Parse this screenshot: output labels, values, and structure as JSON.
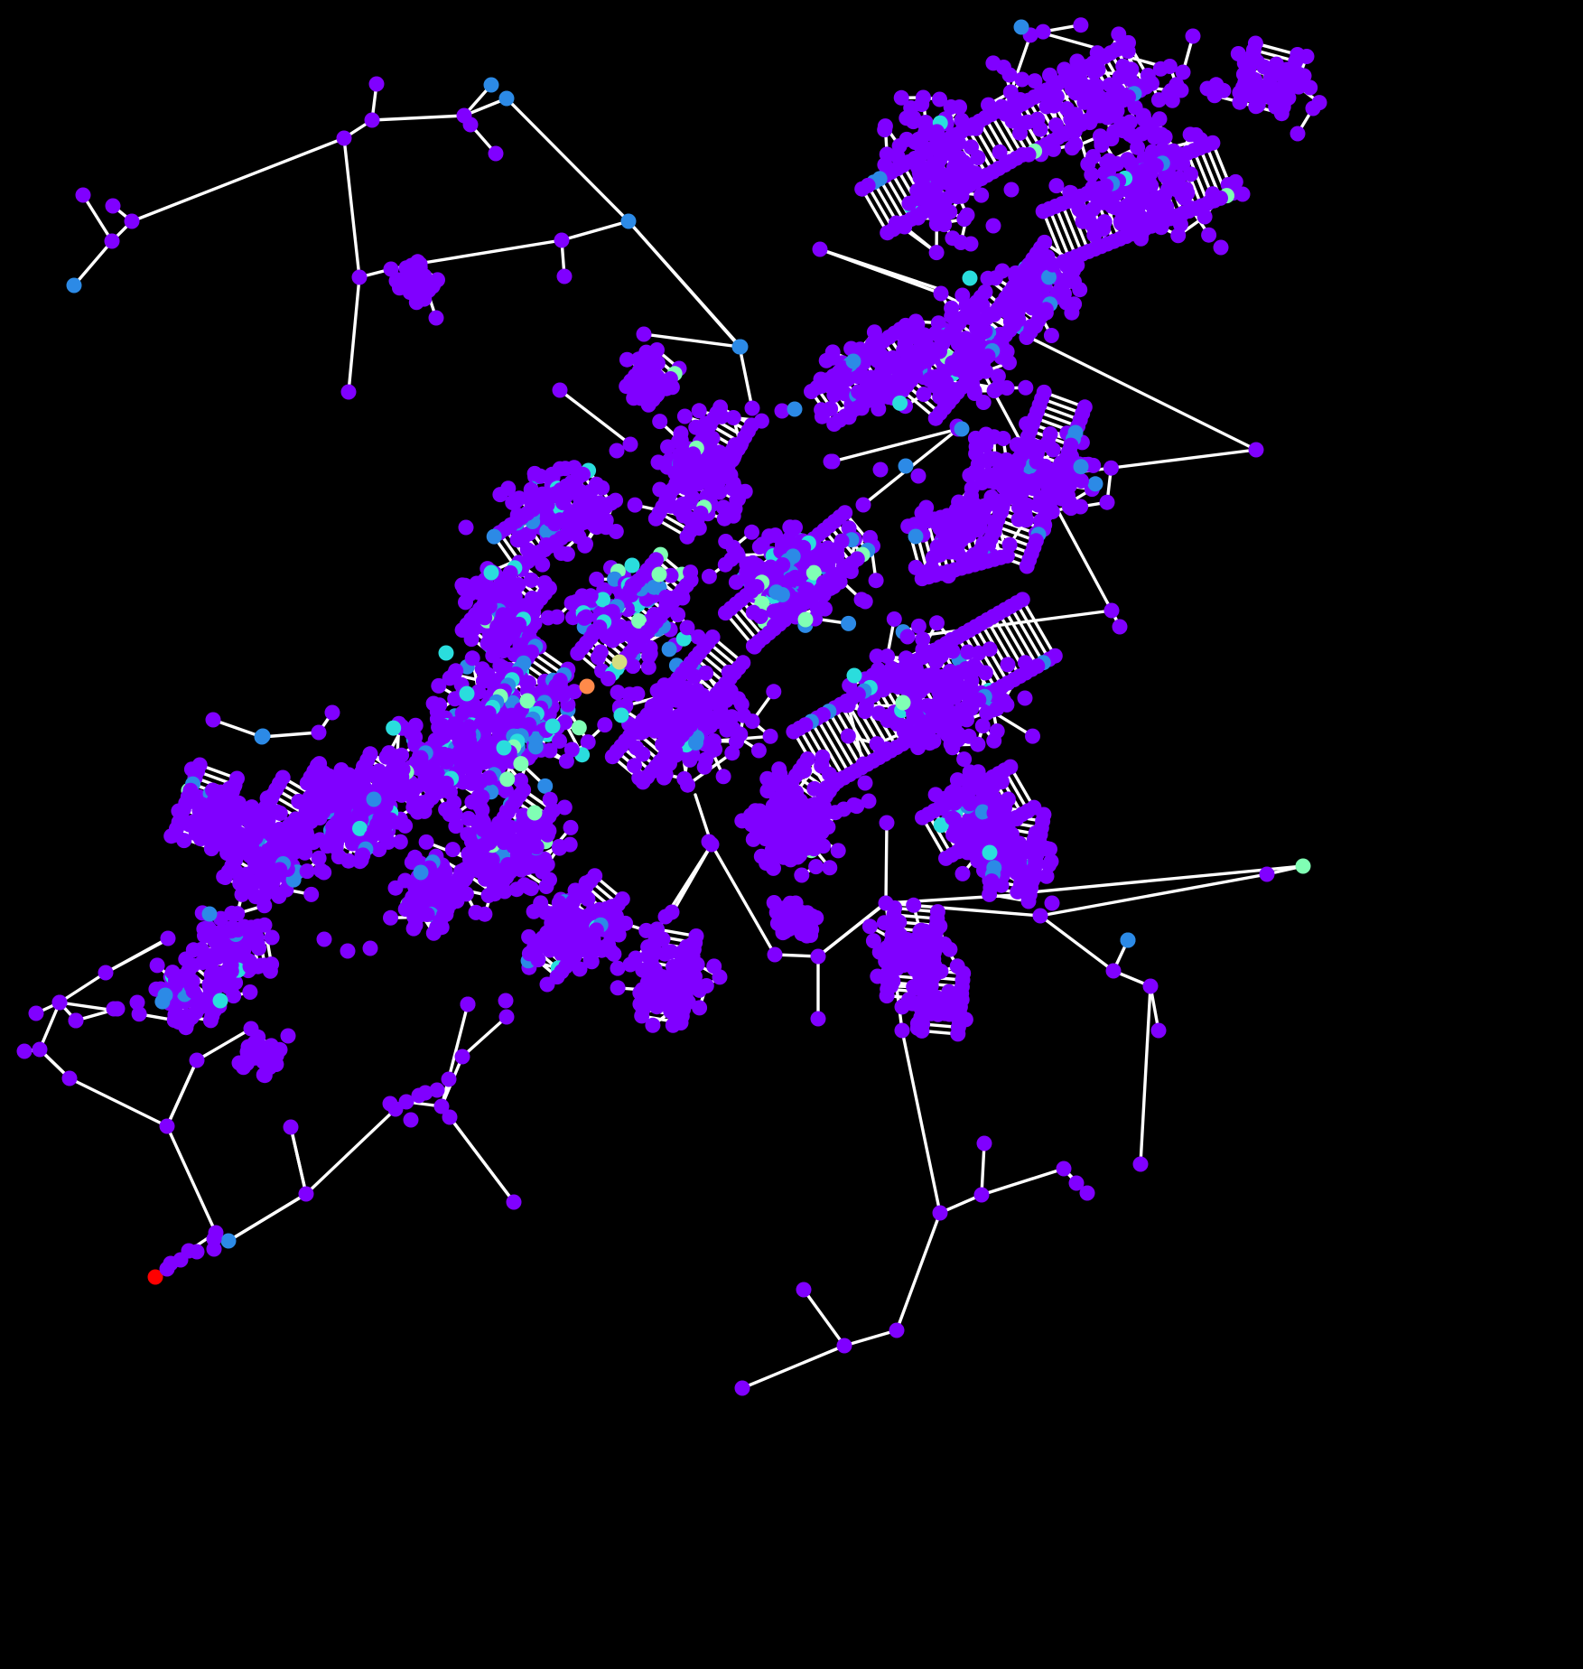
{
  "figure": {
    "type": "network-graph",
    "background_color": "#000000",
    "edge_color": "#ffffff",
    "node_colormap": "rainbow",
    "node_color_levels": {
      "level_0": "#8000ff",
      "level_1": "#2c8ae6",
      "level_2": "#2adddd",
      "level_3": "#80ffb4",
      "level_4": "#d4dd80",
      "level_5": "#ff8a4a",
      "level_6": "#ff0000"
    },
    "dominant_node_color": "#8000ff",
    "highlight_node_color": "#ff0000",
    "labels_printed": false,
    "axes_printed": false,
    "legend_printed": false
  }
}
